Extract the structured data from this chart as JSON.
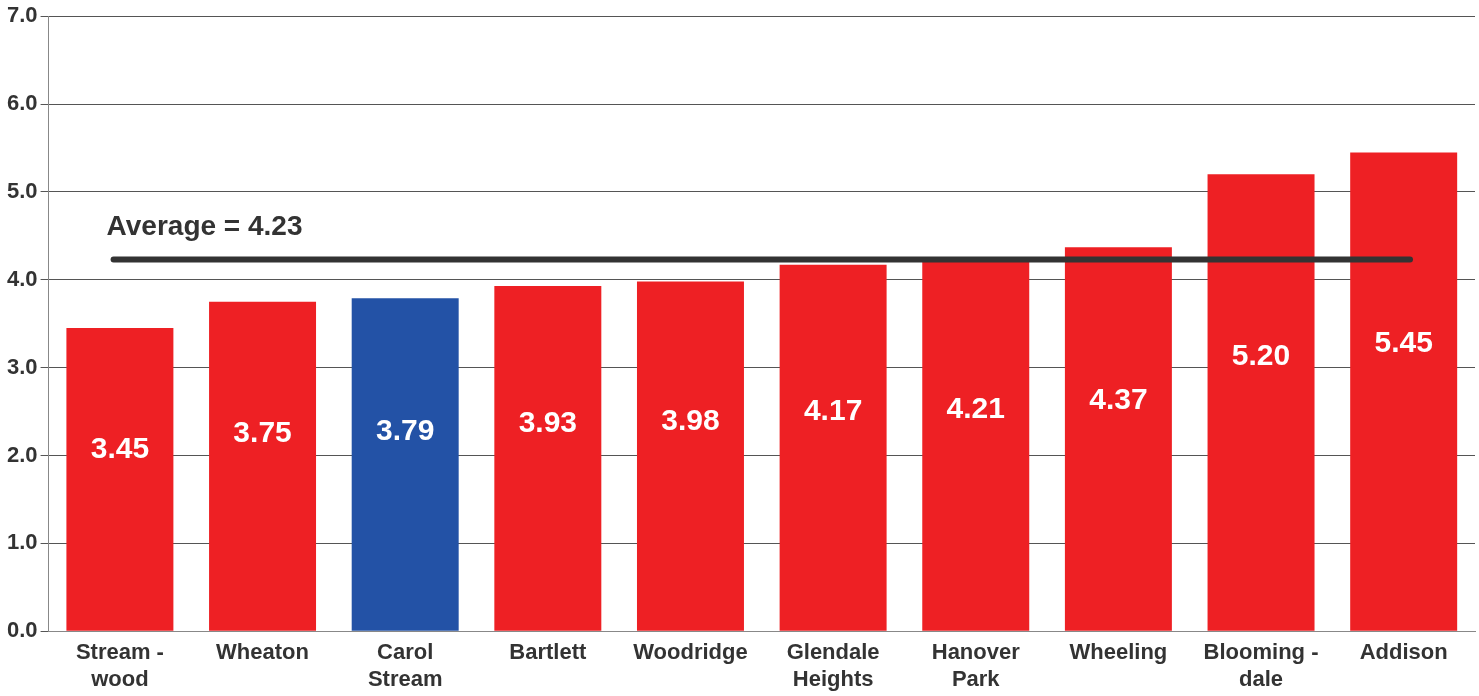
{
  "chart_data": {
    "type": "bar",
    "categories": [
      "Stream -\nwood",
      "Wheaton",
      "Carol\nStream",
      "Bartlett",
      "Woodridge",
      "Glendale\nHeights",
      "Hanover\nPark",
      "Wheeling",
      "Blooming -\ndale",
      "Addison"
    ],
    "values": [
      3.45,
      3.75,
      3.79,
      3.93,
      3.98,
      4.17,
      4.21,
      4.37,
      5.2,
      5.45
    ],
    "value_labels": [
      "3.45",
      "3.75",
      "3.79",
      "3.93",
      "3.98",
      "4.17",
      "4.21",
      "4.37",
      "5.20",
      "5.45"
    ],
    "colors": [
      "#ee2024",
      "#ee2024",
      "#2352a6",
      "#ee2024",
      "#ee2024",
      "#ee2024",
      "#ee2024",
      "#ee2024",
      "#ee2024",
      "#ee2024"
    ],
    "ylim": [
      0,
      7
    ],
    "yticks": [
      {
        "value": 0,
        "label": "0.0"
      },
      {
        "value": 1,
        "label": "1.0"
      },
      {
        "value": 2,
        "label": "2.0"
      },
      {
        "value": 3,
        "label": "3.0"
      },
      {
        "value": 4,
        "label": "4.0"
      },
      {
        "value": 5,
        "label": "5.0"
      },
      {
        "value": 6,
        "label": "6.0"
      },
      {
        "value": 7,
        "label": "7.0"
      }
    ],
    "grid": "y",
    "ref_lines": [
      {
        "axis": "y",
        "value": 4.23,
        "label": "Average = 4.23",
        "color": "#333333"
      }
    ]
  }
}
